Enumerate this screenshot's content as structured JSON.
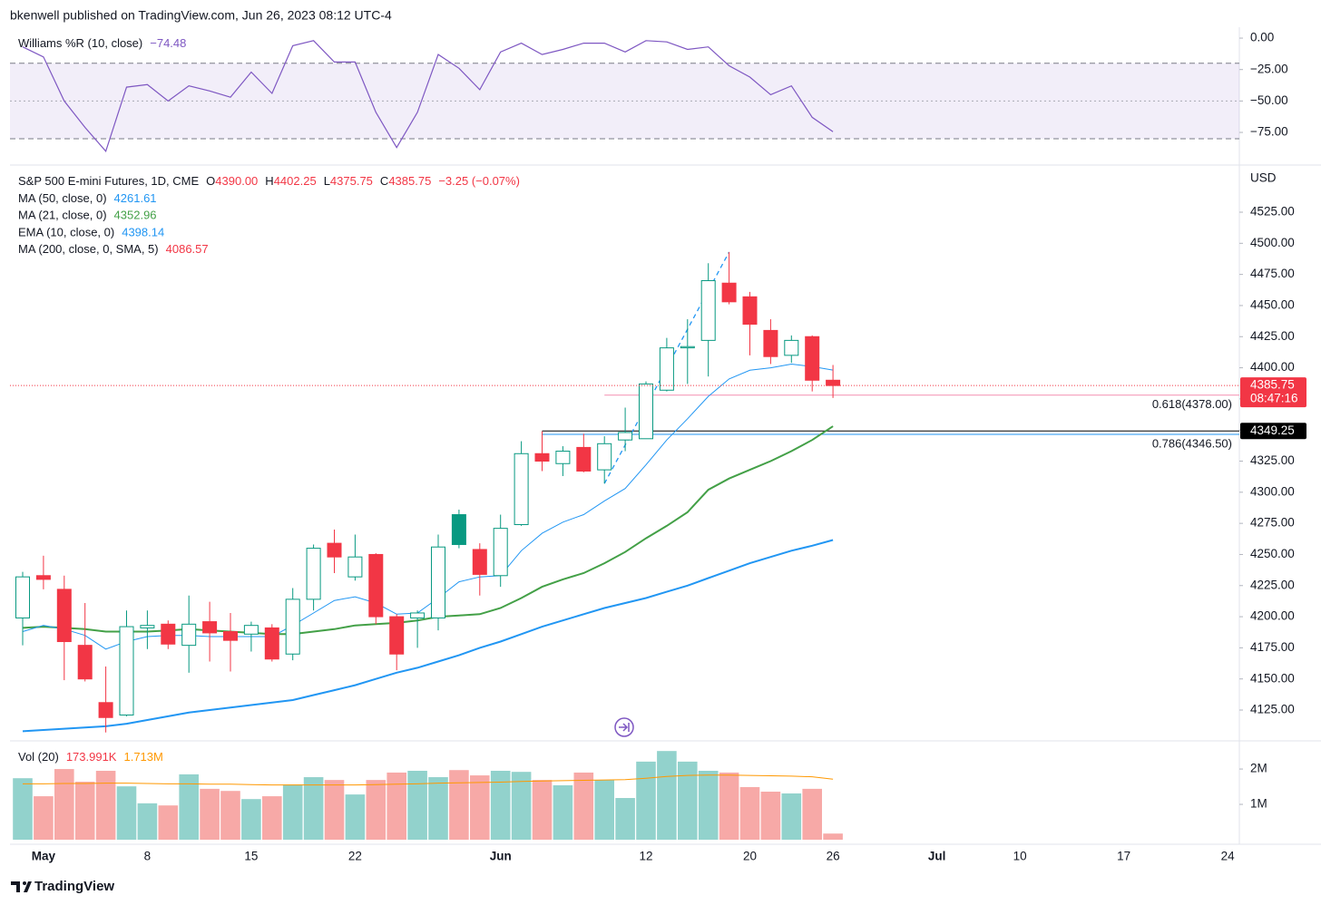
{
  "chart_data": {
    "type": "candlestick",
    "header": "bkenwell published on TradingView.com, Jun 26, 2023 08:12 UTC-4",
    "brand": "TradingView",
    "categories": [
      null,
      "May",
      null,
      null,
      null,
      null,
      "8",
      null,
      null,
      null,
      null,
      "15",
      null,
      null,
      null,
      null,
      "22",
      null,
      null,
      null,
      null,
      null,
      null,
      "Jun",
      null,
      null,
      null,
      null,
      null,
      null,
      "12",
      null,
      null,
      null,
      null,
      "20",
      null,
      null,
      null,
      "26",
      null,
      null,
      null,
      null,
      "Jul",
      null,
      null,
      null,
      "10",
      null,
      null,
      null,
      null,
      "17",
      null,
      null,
      null,
      null,
      "24"
    ],
    "williams_r": {
      "type": "line",
      "name": "Williams %R (10, close)",
      "value_label": "−74.48",
      "color": "#7e57c2",
      "values": [
        -7,
        -15,
        -50,
        -71,
        -90,
        -39,
        -37,
        -50,
        -38,
        -42,
        -47,
        -27,
        -44,
        -6,
        -2,
        -19,
        -19,
        -59,
        -87,
        -59,
        -13,
        -24,
        -41,
        -11,
        -4,
        -13,
        -9,
        -4,
        -4,
        -11,
        -2,
        -3,
        -9,
        -7,
        -22,
        -31,
        -45,
        -38,
        -63,
        -74.48,
        null,
        null,
        null,
        null,
        null,
        null,
        null,
        null,
        null,
        null,
        null,
        null,
        null,
        null,
        null,
        null,
        null,
        null,
        null
      ],
      "band": [
        -80,
        -20
      ],
      "middle": -50,
      "band_color": "#7e57c2",
      "ylim": [
        -99.5,
        5.8
      ],
      "yticks": [
        {
          "value": 0,
          "label": "0.00"
        },
        {
          "value": -25,
          "label": "−25.00"
        },
        {
          "value": -50,
          "label": "−50.00"
        },
        {
          "value": -75,
          "label": "−75.00"
        }
      ]
    },
    "price": {
      "symbol": "S&P 500 E-mini Futures, 1D, CME",
      "unit": "USD",
      "ohlc": [
        {
          "label": "O",
          "value": "4390.00"
        },
        {
          "label": "H",
          "value": "4402.25"
        },
        {
          "label": "L",
          "value": "4375.75"
        },
        {
          "label": "C",
          "value": "4385.75"
        }
      ],
      "change": "−3.25 (−0.07%)",
      "countdown": "08:47:16",
      "up_color": "#089981",
      "down_color": "#f23645",
      "open": [
        4199,
        4233,
        4222,
        4177,
        4131,
        4121,
        4191,
        4194,
        4177,
        4196,
        4188,
        4186,
        4191,
        4170,
        4214,
        4259,
        4232,
        4250,
        4200,
        4199,
        4199,
        4282,
        4254,
        4233,
        4274,
        4331,
        4323,
        4336,
        4318,
        4342,
        4343,
        4382,
        4416,
        4422,
        4468,
        4457,
        4430,
        4410,
        4425,
        4390,
        null,
        null,
        null,
        null,
        null,
        null,
        null,
        null,
        null,
        null,
        null,
        null,
        null,
        null,
        null,
        null,
        null,
        null,
        null
      ],
      "high": [
        4236,
        4249,
        4233,
        4211,
        4160,
        4205,
        4205,
        4197,
        4217,
        4212,
        4203,
        4196,
        4194,
        4223,
        4258,
        4270,
        4266,
        4251,
        4202,
        4205,
        4266,
        4286,
        4259,
        4282,
        4341,
        4349,
        4337,
        4347,
        4345,
        4368,
        4389,
        4424,
        4439,
        4484,
        4493,
        4461,
        4439,
        4426,
        4426,
        4402.25,
        null,
        null,
        null,
        null,
        null,
        null,
        null,
        null,
        null,
        null,
        null,
        null,
        null,
        null,
        null,
        null,
        null,
        null,
        null
      ],
      "low": [
        4177,
        4222,
        4149,
        4148,
        4107,
        4120,
        4174,
        4174,
        4155,
        4164,
        4156,
        4172,
        4164,
        4165,
        4205,
        4235,
        4229,
        4194,
        4157,
        4175,
        4189,
        4255,
        4217,
        4224,
        4273,
        4317,
        4313,
        4316,
        4307,
        4333,
        4343,
        4381,
        4387,
        4393,
        4451,
        4410,
        4403,
        4404,
        4381,
        4375.75,
        null,
        null,
        null,
        null,
        null,
        null,
        null,
        null,
        null,
        null,
        null,
        null,
        null,
        null,
        null,
        null,
        null,
        null,
        null
      ],
      "close": [
        4232,
        4230,
        4180,
        4150,
        4119,
        4192,
        4193,
        4178,
        4194,
        4187,
        4181,
        4193,
        4166,
        4214,
        4255,
        4248,
        4248,
        4200,
        4170,
        4203,
        4256,
        4258,
        4234,
        4271,
        4331,
        4325,
        4333,
        4317,
        4339,
        4348,
        4387,
        4416,
        4417,
        4470,
        4453,
        4435,
        4409,
        4422,
        4390,
        4385.75,
        null,
        null,
        null,
        null,
        null,
        null,
        null,
        null,
        null,
        null,
        null,
        null,
        null,
        null,
        null,
        null,
        null,
        null,
        null
      ],
      "series": [
        {
          "name": "MA (50, close, 0)",
          "value_label": "4261.61",
          "color": "#2196f3",
          "width": 2,
          "values": [
            4108,
            4109,
            4110,
            4111,
            4112,
            4114,
            4117,
            4120,
            4123,
            4125,
            4127,
            4129,
            4131,
            4133,
            4137,
            4141,
            4145,
            4150,
            4155,
            4159,
            4164,
            4169,
            4175,
            4180,
            4186,
            4192,
            4197,
            4202,
            4207,
            4211,
            4215,
            4220,
            4225,
            4231,
            4237,
            4243,
            4248,
            4253,
            4257,
            4261.61,
            null,
            null,
            null,
            null,
            null,
            null,
            null,
            null,
            null,
            null,
            null,
            null,
            null,
            null,
            null,
            null,
            null,
            null,
            null
          ]
        },
        {
          "name": "MA (21, close, 0)",
          "value_label": "4352.96",
          "color": "#43a047",
          "width": 2,
          "values": [
            4191,
            4192,
            4191,
            4190,
            4188,
            4188,
            4188,
            4189,
            4190,
            4189,
            4188,
            4187,
            4186,
            4186,
            4188,
            4190,
            4193,
            4194,
            4195,
            4197,
            4200,
            4201,
            4202,
            4207,
            4215,
            4224,
            4230,
            4235,
            4243,
            4252,
            4263,
            4273,
            4284,
            4302,
            4311,
            4318,
            4325,
            4333,
            4342,
            4352.96,
            null,
            null,
            null,
            null,
            null,
            null,
            null,
            null,
            null,
            null,
            null,
            null,
            null,
            null,
            null,
            null,
            null,
            null,
            null
          ]
        },
        {
          "name": "EMA (10, close, 0)",
          "value_label": "4398.14",
          "color": "#2196f3",
          "width": 1,
          "values": [
            4188,
            4193,
            4190,
            4185,
            4174,
            4180,
            4184,
            4185,
            4185,
            4184,
            4184,
            4184,
            4184,
            4193,
            4203,
            4213,
            4216,
            4211,
            4202,
            4203,
            4215,
            4228,
            4232,
            4233,
            4253,
            4267,
            4276,
            4282,
            4293,
            4303,
            4322,
            4342,
            4359,
            4377,
            4391,
            4398,
            4400,
            4403,
            4401,
            4398.14,
            null,
            null,
            null,
            null,
            null,
            null,
            null,
            null,
            null,
            null,
            null,
            null,
            null,
            null,
            null,
            null,
            null,
            null,
            null
          ]
        },
        {
          "name": "MA (200, close, 0, SMA, 5)",
          "value_label": "4086.57",
          "color": "#f23645"
        }
      ],
      "fib": [
        {
          "label": "0.618(4378.00)",
          "value": 4378,
          "color": "#f48fb1"
        },
        {
          "label": "0.786(4346.50)",
          "value": 4346.5,
          "color": "#2196f3"
        }
      ],
      "level": {
        "value": 4349.25,
        "color": "#000000"
      },
      "trendline": {
        "from": 4307,
        "to": 4493,
        "color": "#2196f3"
      },
      "ylim": [
        4101.7,
        4560.7
      ],
      "yticks": [
        {
          "value": 4125,
          "label": "4125.00"
        },
        {
          "value": 4150,
          "label": "4150.00"
        },
        {
          "value": 4175,
          "label": "4175.00"
        },
        {
          "value": 4200,
          "label": "4200.00"
        },
        {
          "value": 4225,
          "label": "4225.00"
        },
        {
          "value": 4250,
          "label": "4250.00"
        },
        {
          "value": 4275,
          "label": "4275.00"
        },
        {
          "value": 4300,
          "label": "4300.00"
        },
        {
          "value": 4325,
          "label": "4325.00"
        },
        {
          "value": 4350,
          "label": "4350.00"
        },
        {
          "value": 4375,
          "label": "4375.00"
        },
        {
          "value": 4400,
          "label": "4400.00"
        },
        {
          "value": 4425,
          "label": "4425.00"
        },
        {
          "value": 4450,
          "label": "4450.00"
        },
        {
          "value": 4475,
          "label": "4475.00"
        },
        {
          "value": 4500,
          "label": "4500.00"
        },
        {
          "value": 4525,
          "label": "4525.00"
        }
      ]
    },
    "volume": {
      "name": "Vol (20)",
      "value_label": "173.991K",
      "ma_label": "1.713M",
      "up_color": "#92d2cc",
      "down_color": "#f7a9a7",
      "ma_color": "#ff9800",
      "values": [
        1740000,
        1230000,
        2000000,
        1640000,
        1950000,
        1510000,
        1030000,
        970000,
        1850000,
        1440000,
        1380000,
        1150000,
        1230000,
        1560000,
        1770000,
        1690000,
        1280000,
        1690000,
        1900000,
        1950000,
        1770000,
        1970000,
        1820000,
        1950000,
        1920000,
        1690000,
        1540000,
        1900000,
        1690000,
        1180000,
        2210000,
        2510000,
        2210000,
        1950000,
        1900000,
        1490000,
        1360000,
        1310000,
        1440000,
        173991,
        null,
        null,
        null,
        null,
        null,
        null,
        null,
        null,
        null,
        null,
        null,
        null,
        null,
        null,
        null,
        null,
        null,
        null,
        null
      ],
      "ma_values": [
        1580000,
        1580000,
        1590000,
        1590000,
        1600000,
        1600000,
        1590000,
        1580000,
        1580000,
        1570000,
        1570000,
        1560000,
        1550000,
        1550000,
        1550000,
        1550000,
        1550000,
        1560000,
        1570000,
        1580000,
        1600000,
        1610000,
        1620000,
        1630000,
        1650000,
        1660000,
        1670000,
        1680000,
        1690000,
        1700000,
        1740000,
        1790000,
        1820000,
        1830000,
        1830000,
        1820000,
        1810000,
        1800000,
        1780000,
        1713000,
        null,
        null,
        null,
        null,
        null,
        null,
        null,
        null,
        null,
        null,
        null,
        null,
        null,
        null,
        null,
        null,
        null,
        null,
        null
      ],
      "ylim": [
        0,
        2720000
      ],
      "yticks": [
        {
          "value": 1000000,
          "label": "1M"
        },
        {
          "value": 2000000,
          "label": "2M"
        }
      ]
    }
  }
}
